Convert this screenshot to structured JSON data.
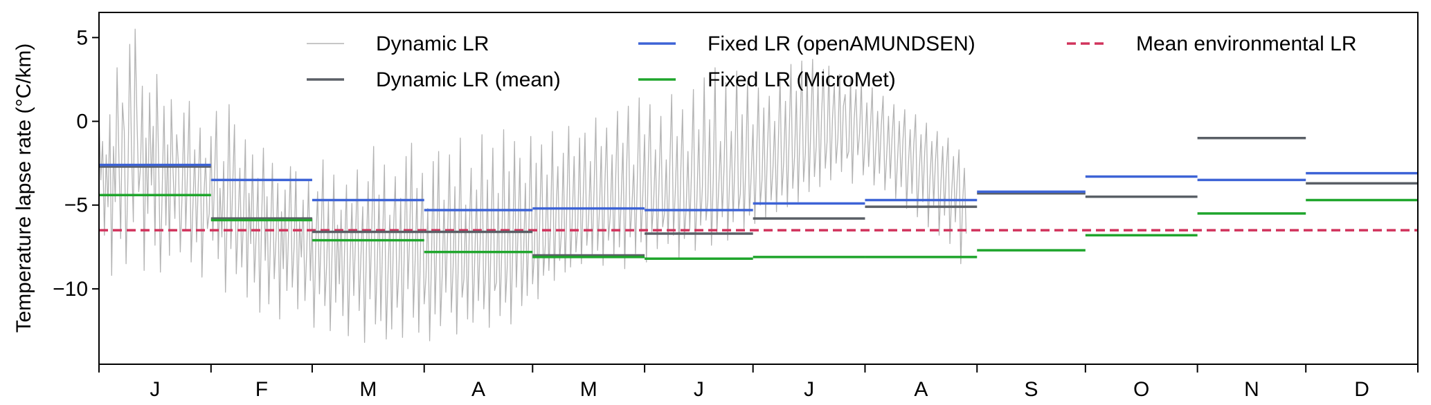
{
  "chart_data": {
    "type": "line",
    "ylabel": "Temperature lapse rate (°C/km)",
    "xlabel": "",
    "ylim": [
      -14.5,
      6.5
    ],
    "xlim": [
      0,
      365
    ],
    "y_ticks": [
      5,
      0,
      -5,
      -10
    ],
    "y_tick_labels": [
      "5",
      "0",
      "−5",
      "−10"
    ],
    "months": [
      "J",
      "F",
      "M",
      "A",
      "M",
      "J",
      "J",
      "A",
      "S",
      "O",
      "N",
      "D"
    ],
    "month_starts": [
      0,
      31,
      59,
      90,
      120,
      151,
      181,
      212,
      243,
      273,
      304,
      334,
      365
    ],
    "grid": false,
    "legend_position": "top",
    "legend": [
      {
        "key": "dynamic",
        "label": "Dynamic LR",
        "color": "#b3b3b3",
        "style": "solid-thin"
      },
      {
        "key": "dynamic_mean",
        "label": "Dynamic LR (mean)",
        "color": "#5a5f66",
        "style": "solid"
      },
      {
        "key": "fixed_oa",
        "label": "Fixed LR (openAMUNDSEN)",
        "color": "#3d63d6",
        "style": "solid"
      },
      {
        "key": "fixed_mm",
        "label": "Fixed LR (MicroMet)",
        "color": "#1fa52c",
        "style": "solid"
      },
      {
        "key": "env",
        "label": "Mean environmental LR",
        "color": "#d1335c",
        "style": "dashed"
      }
    ],
    "series": [
      {
        "name": "Dynamic LR (mean)",
        "color": "#5a5f66",
        "values": [
          -2.7,
          -5.8,
          -6.6,
          -6.6,
          -8.0,
          -6.7,
          -5.8,
          -5.1,
          -4.3,
          -4.5,
          -1.0,
          -3.7
        ]
      },
      {
        "name": "Fixed LR (openAMUNDSEN)",
        "color": "#3d63d6",
        "values": [
          -2.6,
          -3.5,
          -4.7,
          -5.3,
          -5.2,
          -5.3,
          -4.9,
          -4.7,
          -4.2,
          -3.3,
          -3.5,
          -3.1
        ]
      },
      {
        "name": "Fixed LR (MicroMet)",
        "color": "#1fa52c",
        "values": [
          -4.4,
          -5.9,
          -7.1,
          -7.8,
          -8.1,
          -8.2,
          -8.1,
          -8.1,
          -7.7,
          -6.8,
          -5.5,
          -4.7
        ]
      },
      {
        "name": "Mean environmental LR",
        "color": "#d1335c",
        "value": -6.5
      }
    ],
    "dynamic_series": {
      "name": "Dynamic LR",
      "color": "#b3b3b3",
      "start_day": 0,
      "days_per_point": 0.5,
      "values": [
        0.8,
        -3.5,
        -1.2,
        -6.8,
        -2.0,
        -5.1,
        0.4,
        -9.2,
        -1.5,
        -4.8,
        3.2,
        -2.1,
        -7.0,
        1.1,
        -0.6,
        -8.5,
        -3.3,
        4.6,
        -1.8,
        -6.0,
        5.5,
        0.2,
        -4.2,
        -2.7,
        2.1,
        -8.9,
        -1.0,
        -5.5,
        1.7,
        -3.8,
        -0.3,
        -7.4,
        2.8,
        -2.3,
        -9.0,
        -4.1,
        0.9,
        -6.2,
        -1.4,
        -8.0,
        1.3,
        -3.0,
        -5.8,
        -0.8,
        -2.6,
        -7.8,
        -4.4,
        0.5,
        -6.5,
        -2.9,
        1.2,
        -8.4,
        -5.0,
        -1.7,
        -7.2,
        -3.6,
        -0.4,
        -9.3,
        -4.6,
        -2.2,
        -6.4,
        -5.5,
        -0.9,
        -7.1,
        -3.2,
        0.6,
        -8.2,
        -4.0,
        -6.9,
        -2.4,
        -10.2,
        -5.2,
        1.0,
        -7.6,
        -3.9,
        -0.2,
        -9.1,
        -6.1,
        -2.8,
        -8.7,
        -5.7,
        -1.1,
        -10.5,
        -4.3,
        -7.3,
        -2.0,
        -9.6,
        -6.8,
        -3.4,
        -11.4,
        -5.9,
        -1.6,
        -8.3,
        -4.5,
        -10.9,
        -6.6,
        -2.5,
        -9.4,
        -7.0,
        -3.7,
        -11.8,
        -5.4,
        -8.8,
        -4.1,
        -10.1,
        -6.3,
        -2.7,
        -9.9,
        -7.5,
        -3.0,
        -11.2,
        -6.0,
        -8.1,
        -4.7,
        -10.7,
        -7.7,
        -3.5,
        -9.5,
        -5.8,
        -12.3,
        -7.2,
        -4.2,
        -10.3,
        -6.7,
        -2.3,
        -11.0,
        -8.6,
        -4.8,
        -12.5,
        -7.9,
        -3.2,
        -10.8,
        -6.2,
        -9.7,
        -5.3,
        -11.6,
        -7.4,
        -3.8,
        -12.8,
        -8.3,
        -4.9,
        -10.4,
        -6.9,
        -2.9,
        -11.3,
        -8.0,
        -5.1,
        -13.2,
        -7.8,
        -3.6,
        -10.6,
        -6.4,
        -1.5,
        -12.1,
        -8.5,
        -4.4,
        -11.9,
        -7.1,
        -2.6,
        -13.0,
        -9.0,
        -5.6,
        -12.4,
        -6.6,
        -3.3,
        -11.1,
        -8.9,
        -4.6,
        -12.9,
        -7.6,
        -2.1,
        -10.0,
        -6.8,
        -1.3,
        -11.7,
        -8.2,
        -4.0,
        -12.6,
        -7.3,
        -3.1,
        -10.9,
        -9.3,
        -5.2,
        -13.1,
        -8.4,
        -2.4,
        -11.5,
        -7.0,
        -1.8,
        -12.2,
        -9.1,
        -4.7,
        -10.2,
        -6.5,
        -2.0,
        -11.4,
        -8.7,
        -3.9,
        -12.7,
        -7.8,
        -1.0,
        -10.5,
        -9.4,
        -5.0,
        -11.8,
        -6.3,
        -2.8,
        -12.0,
        -8.1,
        -4.1,
        -10.7,
        -7.2,
        -0.8,
        -11.2,
        -8.8,
        -3.5,
        -12.3,
        -6.9,
        -1.6,
        -10.1,
        -9.6,
        -4.3,
        -11.6,
        -7.5,
        -0.5,
        -10.8,
        -8.6,
        -3.0,
        -12.1,
        -7.7,
        -1.2,
        -9.9,
        -6.4,
        -2.2,
        -11.0,
        -8.0,
        -3.7,
        -10.4,
        -6.1,
        -0.9,
        -9.7,
        -7.9,
        -2.5,
        -10.6,
        -5.8,
        -1.4,
        -9.2,
        -7.4,
        -3.2,
        -8.9,
        -6.0,
        -0.6,
        -9.5,
        -5.4,
        -2.7,
        -8.3,
        -6.6,
        -1.9,
        -9.0,
        -4.9,
        -0.3,
        -8.7,
        -5.7,
        -2.1,
        -7.8,
        -6.3,
        -1.0,
        -8.5,
        -4.6,
        -0.7,
        -7.4,
        -5.9,
        -2.4,
        -8.1,
        -4.2,
        0.2,
        -7.7,
        -5.3,
        -1.5,
        -8.6,
        -3.8,
        -0.4,
        -7.1,
        -5.6,
        -2.0,
        -8.0,
        -3.5,
        0.6,
        -7.5,
        -4.8,
        -1.3,
        -8.8,
        -3.0,
        0.9,
        -6.9,
        -5.1,
        -2.6,
        -7.9,
        -3.3,
        1.4,
        -7.2,
        -4.4,
        -0.8,
        -8.4,
        -2.8,
        1.0,
        -6.6,
        -4.9,
        -1.7,
        -7.6,
        -3.6,
        0.3,
        -6.3,
        -5.5,
        -2.3,
        -7.3,
        -2.5,
        1.6,
        -6.8,
        -4.1,
        -0.9,
        -8.2,
        -3.1,
        0.7,
        -7.0,
        -5.2,
        -1.8,
        -6.5,
        -2.9,
        1.9,
        -7.7,
        -4.5,
        -0.5,
        -6.2,
        -3.9,
        2.6,
        -5.9,
        -4.7,
        0.1,
        -7.4,
        -3.4,
        3.2,
        -6.7,
        -4.0,
        -1.2,
        -5.7,
        -2.7,
        2.3,
        -7.1,
        -3.7,
        -0.6,
        -6.0,
        -2.2,
        3.0,
        -5.3,
        -4.3,
        0.4,
        -6.4,
        -2.6,
        2.4,
        -5.6,
        -3.2,
        -0.2,
        -6.1,
        -2.0,
        2.0,
        -5.0,
        -3.5,
        0.8,
        -5.8,
        -1.7,
        1.5,
        -4.7,
        -2.9,
        0.0,
        -5.4,
        -1.4,
        2.7,
        -4.4,
        -2.4,
        1.2,
        -5.1,
        -0.9,
        3.4,
        -4.0,
        -2.1,
        1.8,
        -4.8,
        -0.6,
        3.6,
        -3.6,
        -1.9,
        2.9,
        -4.2,
        -0.3,
        3.7,
        -3.3,
        -1.5,
        2.5,
        -3.9,
        0.5,
        3.1,
        -2.8,
        -1.2,
        3.3,
        -3.5,
        0.2,
        2.2,
        -2.5,
        -1.0,
        2.8,
        -3.0,
        0.9,
        1.6,
        -2.2,
        -1.8,
        2.6,
        -3.7,
        0.1,
        1.9,
        -2.0,
        -0.7,
        2.4,
        -3.2,
        -1.3,
        1.1,
        -2.7,
        -0.4,
        2.0,
        -3.8,
        -1.6,
        0.6,
        -3.1,
        -0.2,
        1.5,
        -4.1,
        -2.0,
        0.3,
        -3.4,
        -0.9,
        1.0,
        -4.6,
        -2.3,
        0.0,
        -3.9,
        -1.1,
        0.7,
        -5.2,
        -2.6,
        -0.5,
        -4.3,
        -1.4,
        0.4,
        -5.7,
        -3.0,
        -0.8,
        -4.8,
        -1.9,
        -0.1,
        -6.3,
        -3.3,
        -1.2,
        -5.0,
        -2.4,
        -0.6,
        -6.8,
        -3.7,
        -1.5,
        -5.6,
        -2.8,
        -1.0,
        -7.3,
        -4.2,
        -2.1,
        -6.0,
        -3.5,
        -1.7,
        -8.5,
        -4.9,
        -2.8,
        -6.7
      ]
    }
  }
}
